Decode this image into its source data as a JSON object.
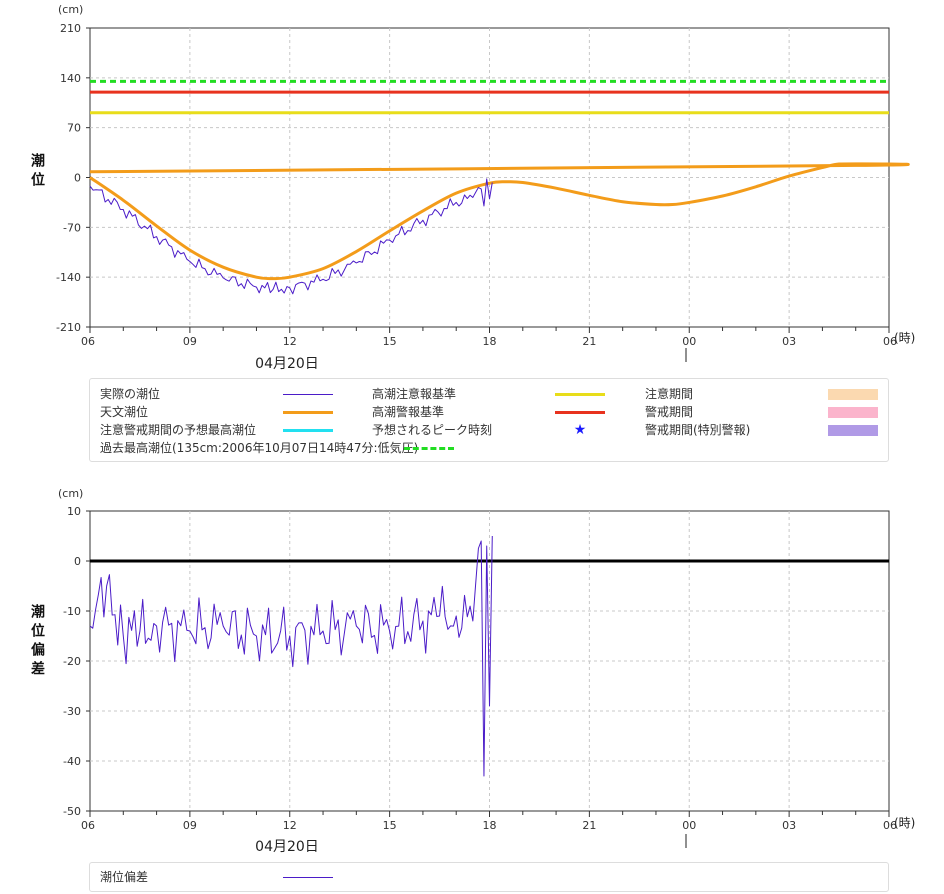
{
  "chart_data": [
    {
      "type": "line",
      "unit_label": "(cm)",
      "ylabel": "潮位",
      "ylim": [
        -210,
        210
      ],
      "yticks": [
        210,
        140,
        70,
        0,
        -70,
        -140,
        -210
      ],
      "yticks_text": [
        "210",
        "140",
        "70",
        "0",
        "-70",
        "-140",
        "-210"
      ],
      "xlim_hours": [
        6,
        30
      ],
      "xticks_text": [
        "06",
        "09",
        "12",
        "15",
        "18",
        "21",
        "00",
        "03",
        "06"
      ],
      "x_unit": "(時)",
      "date_label": "04月20日",
      "grid": true,
      "reference_lines": [
        {
          "name": "過去最高潮位(135cm:2006年10月07日14時47分:低気圧)",
          "value": 135,
          "color": "#22dd22",
          "style": "dashed"
        },
        {
          "name": "高潮警報基準",
          "value": 120,
          "color": "#e8321e",
          "style": "solid"
        },
        {
          "name": "高潮注意報基準",
          "value": 91,
          "color": "#e8dd1a",
          "style": "solid"
        }
      ],
      "series": [
        {
          "name": "天文潮位",
          "color": "#f39c1a",
          "x": [
            "06:00",
            "07:00",
            "08:00",
            "09:00",
            "10:00",
            "11:00",
            "11:30",
            "12:00",
            "13:00",
            "14:00",
            "15:00",
            "16:00",
            "17:00",
            "18:00",
            "18:30",
            "19:00",
            "20:00",
            "21:00",
            "22:00",
            "23:00",
            "23:30",
            "00:00",
            "01:00",
            "02:00",
            "03:00",
            "04:00",
            "04:30",
            "05:00",
            "06:00"
          ],
          "values": [
            0,
            -32,
            -68,
            -102,
            -126,
            -140,
            -142,
            -140,
            -128,
            -104,
            -75,
            -47,
            -22,
            -8,
            -6,
            -7,
            -15,
            -25,
            -34,
            -38,
            -38,
            -35,
            -26,
            -13,
            2,
            14,
            19,
            17,
            8
          ]
        },
        {
          "name": "実際の潮位",
          "color": "#4b1cc8",
          "x": [
            "06:00",
            "07:00",
            "08:00",
            "09:00",
            "10:00",
            "11:00",
            "11:30",
            "12:00",
            "13:00",
            "14:00",
            "15:00",
            "16:00",
            "17:00",
            "17:30",
            "17:45",
            "17:50",
            "17:55",
            "18:00",
            "18:05"
          ],
          "values": [
            -12,
            -45,
            -83,
            -118,
            -141,
            -154,
            -157,
            -155,
            -143,
            -120,
            -88,
            -60,
            -35,
            -28,
            -16,
            -40,
            -2,
            -30,
            -7
          ]
        }
      ]
    },
    {
      "type": "line",
      "unit_label": "(cm)",
      "ylabel": "潮位偏差",
      "ylim": [
        -50,
        10
      ],
      "yticks": [
        10,
        0,
        -10,
        -20,
        -30,
        -40,
        -50
      ],
      "yticks_text": [
        "10",
        "0",
        "-10",
        "-20",
        "-30",
        "-40",
        "-50"
      ],
      "xlim_hours": [
        6,
        30
      ],
      "xticks_text": [
        "06",
        "09",
        "12",
        "15",
        "18",
        "21",
        "00",
        "03",
        "06"
      ],
      "x_unit": "(時)",
      "date_label": "04月20日",
      "grid": true,
      "reference_lines": [
        {
          "name": "",
          "value": 0,
          "color": "#000000",
          "style": "solid"
        }
      ],
      "series": [
        {
          "name": "潮位偏差",
          "color": "#4b1cc8",
          "x": [
            "06:00",
            "06:30",
            "07:00",
            "07:30",
            "08:00",
            "09:00",
            "10:00",
            "11:00",
            "12:00",
            "13:00",
            "14:00",
            "15:00",
            "16:00",
            "16:30",
            "17:00",
            "17:30",
            "17:45",
            "17:50",
            "17:55",
            "18:00",
            "18:05"
          ],
          "values": [
            -13,
            -5,
            -15,
            -14,
            -13,
            -14,
            -13,
            -15,
            -15,
            -14,
            -13,
            -14,
            -12,
            -11,
            -11,
            -12,
            4,
            -43,
            3,
            -29,
            5
          ]
        }
      ]
    }
  ],
  "legend_top": {
    "items": [
      {
        "label": "実際の潮位",
        "kind": "line",
        "color": "#4b1cc8"
      },
      {
        "label": "天文潮位",
        "kind": "thick",
        "color": "#f39c1a"
      },
      {
        "label": "注意警戒期間の予想最高潮位",
        "kind": "thick",
        "color": "#22e0f0"
      },
      {
        "label": "過去最高潮位(135cm:2006年10月07日14時47分:低気圧)",
        "kind": "dash",
        "color": "#22dd22"
      },
      {
        "label": "高潮注意報基準",
        "kind": "thick",
        "color": "#e8dd1a"
      },
      {
        "label": "高潮警報基準",
        "kind": "thick",
        "color": "#e8321e"
      },
      {
        "label": "予想されるピーク時刻",
        "kind": "star",
        "color": "#1a1aff"
      },
      {
        "label": "注意期間",
        "kind": "box",
        "color": "#fbd9b0"
      },
      {
        "label": "警戒期間",
        "kind": "box",
        "color": "#fbb4cc"
      },
      {
        "label": "警戒期間(特別警報)",
        "kind": "box",
        "color": "#b09ae6"
      }
    ]
  },
  "legend_bottom": {
    "items": [
      {
        "label": "潮位偏差",
        "kind": "line",
        "color": "#4b1cc8"
      }
    ]
  },
  "colors": {
    "grid": "#c8c8c8",
    "axis": "#333333"
  }
}
